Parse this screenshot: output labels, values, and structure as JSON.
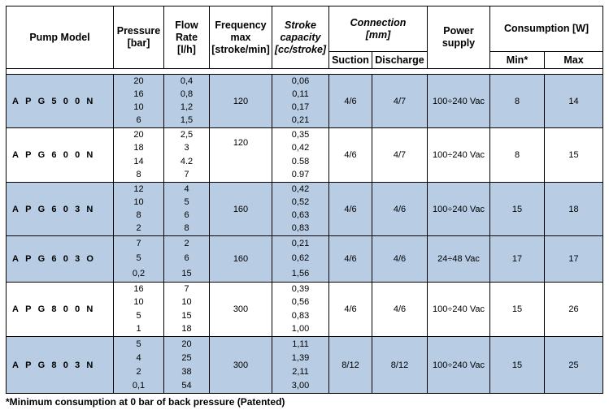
{
  "headers": {
    "model": "Pump Model",
    "pressure": "Pressure [bar]",
    "flow": "Flow Rate [l/h]",
    "frequency": "Frequency max [stroke/min]",
    "stroke": "Stroke capacity [cc/stroke]",
    "connection": "Connection [mm]",
    "suction": "Suction",
    "discharge": "Discharge",
    "power": "Power supply",
    "consumption": "Consumption [W]",
    "min": "Min*",
    "max": "Max"
  },
  "rows": [
    {
      "model": "APG500N",
      "pressure": [
        "20",
        "16",
        "10",
        "6"
      ],
      "flow": [
        "0,4",
        "0,8",
        "1,2",
        "1,5"
      ],
      "frequency": "120",
      "stroke": [
        "0,06",
        "0,11",
        "0,17",
        "0,21"
      ],
      "suction": "4/6",
      "discharge": "4/7",
      "power": "100÷240 Vac",
      "min": "8",
      "max": "14",
      "shade": "blue"
    },
    {
      "model": "APG600N",
      "pressure": [
        "20",
        "18",
        "14",
        "8"
      ],
      "flow": [
        "2,5",
        "3",
        "4.2",
        "7"
      ],
      "frequency": "120",
      "stroke": [
        "0,35",
        "0,42",
        "0.58",
        "0.97"
      ],
      "suction": "4/6",
      "discharge": "4/7",
      "power": "100÷240 Vac",
      "min": "8",
      "max": "15",
      "shade": "white"
    },
    {
      "model": "APG603N",
      "pressure": [
        "12",
        "10",
        "8",
        "2"
      ],
      "flow": [
        "4",
        "5",
        "6",
        "8"
      ],
      "frequency": "160",
      "stroke": [
        "0,42",
        "0,52",
        "0,63",
        "0,83"
      ],
      "suction": "4/6",
      "discharge": "4/6",
      "power": "100÷240 Vac",
      "min": "15",
      "max": "18",
      "shade": "blue"
    },
    {
      "model": "APG603O",
      "pressure": [
        "7",
        "5",
        "0,2"
      ],
      "flow": [
        "2",
        "6",
        "15"
      ],
      "frequency": "160",
      "stroke": [
        "0,21",
        "0,62",
        "1,56"
      ],
      "suction": "4/6",
      "discharge": "4/6",
      "power": "24÷48 Vac",
      "min": "17",
      "max": "17",
      "shade": "blue"
    },
    {
      "model": "APG800N",
      "pressure": [
        "16",
        "10",
        "5",
        "1"
      ],
      "flow": [
        "7",
        "10",
        "15",
        "18"
      ],
      "frequency": "300",
      "stroke": [
        "0,39",
        "0,56",
        "0,83",
        "1,00"
      ],
      "suction": "4/6",
      "discharge": "4/6",
      "power": "100÷240 Vac",
      "min": "15",
      "max": "26",
      "shade": "white"
    },
    {
      "model": "APG803N",
      "pressure": [
        "5",
        "4",
        "2",
        "0,1"
      ],
      "flow": [
        "20",
        "25",
        "38",
        "54"
      ],
      "frequency": "300",
      "stroke": [
        "1,11",
        "1,39",
        "2,11",
        "3,00"
      ],
      "suction": "8/12",
      "discharge": "8/12",
      "power": "100÷240 Vac",
      "min": "15",
      "max": "25",
      "shade": "blue"
    }
  ],
  "footnote": "*Minimum consumption at 0 bar of back pressure (Patented)",
  "colors": {
    "row_shade": "#b8cce4",
    "border": "#000000"
  }
}
